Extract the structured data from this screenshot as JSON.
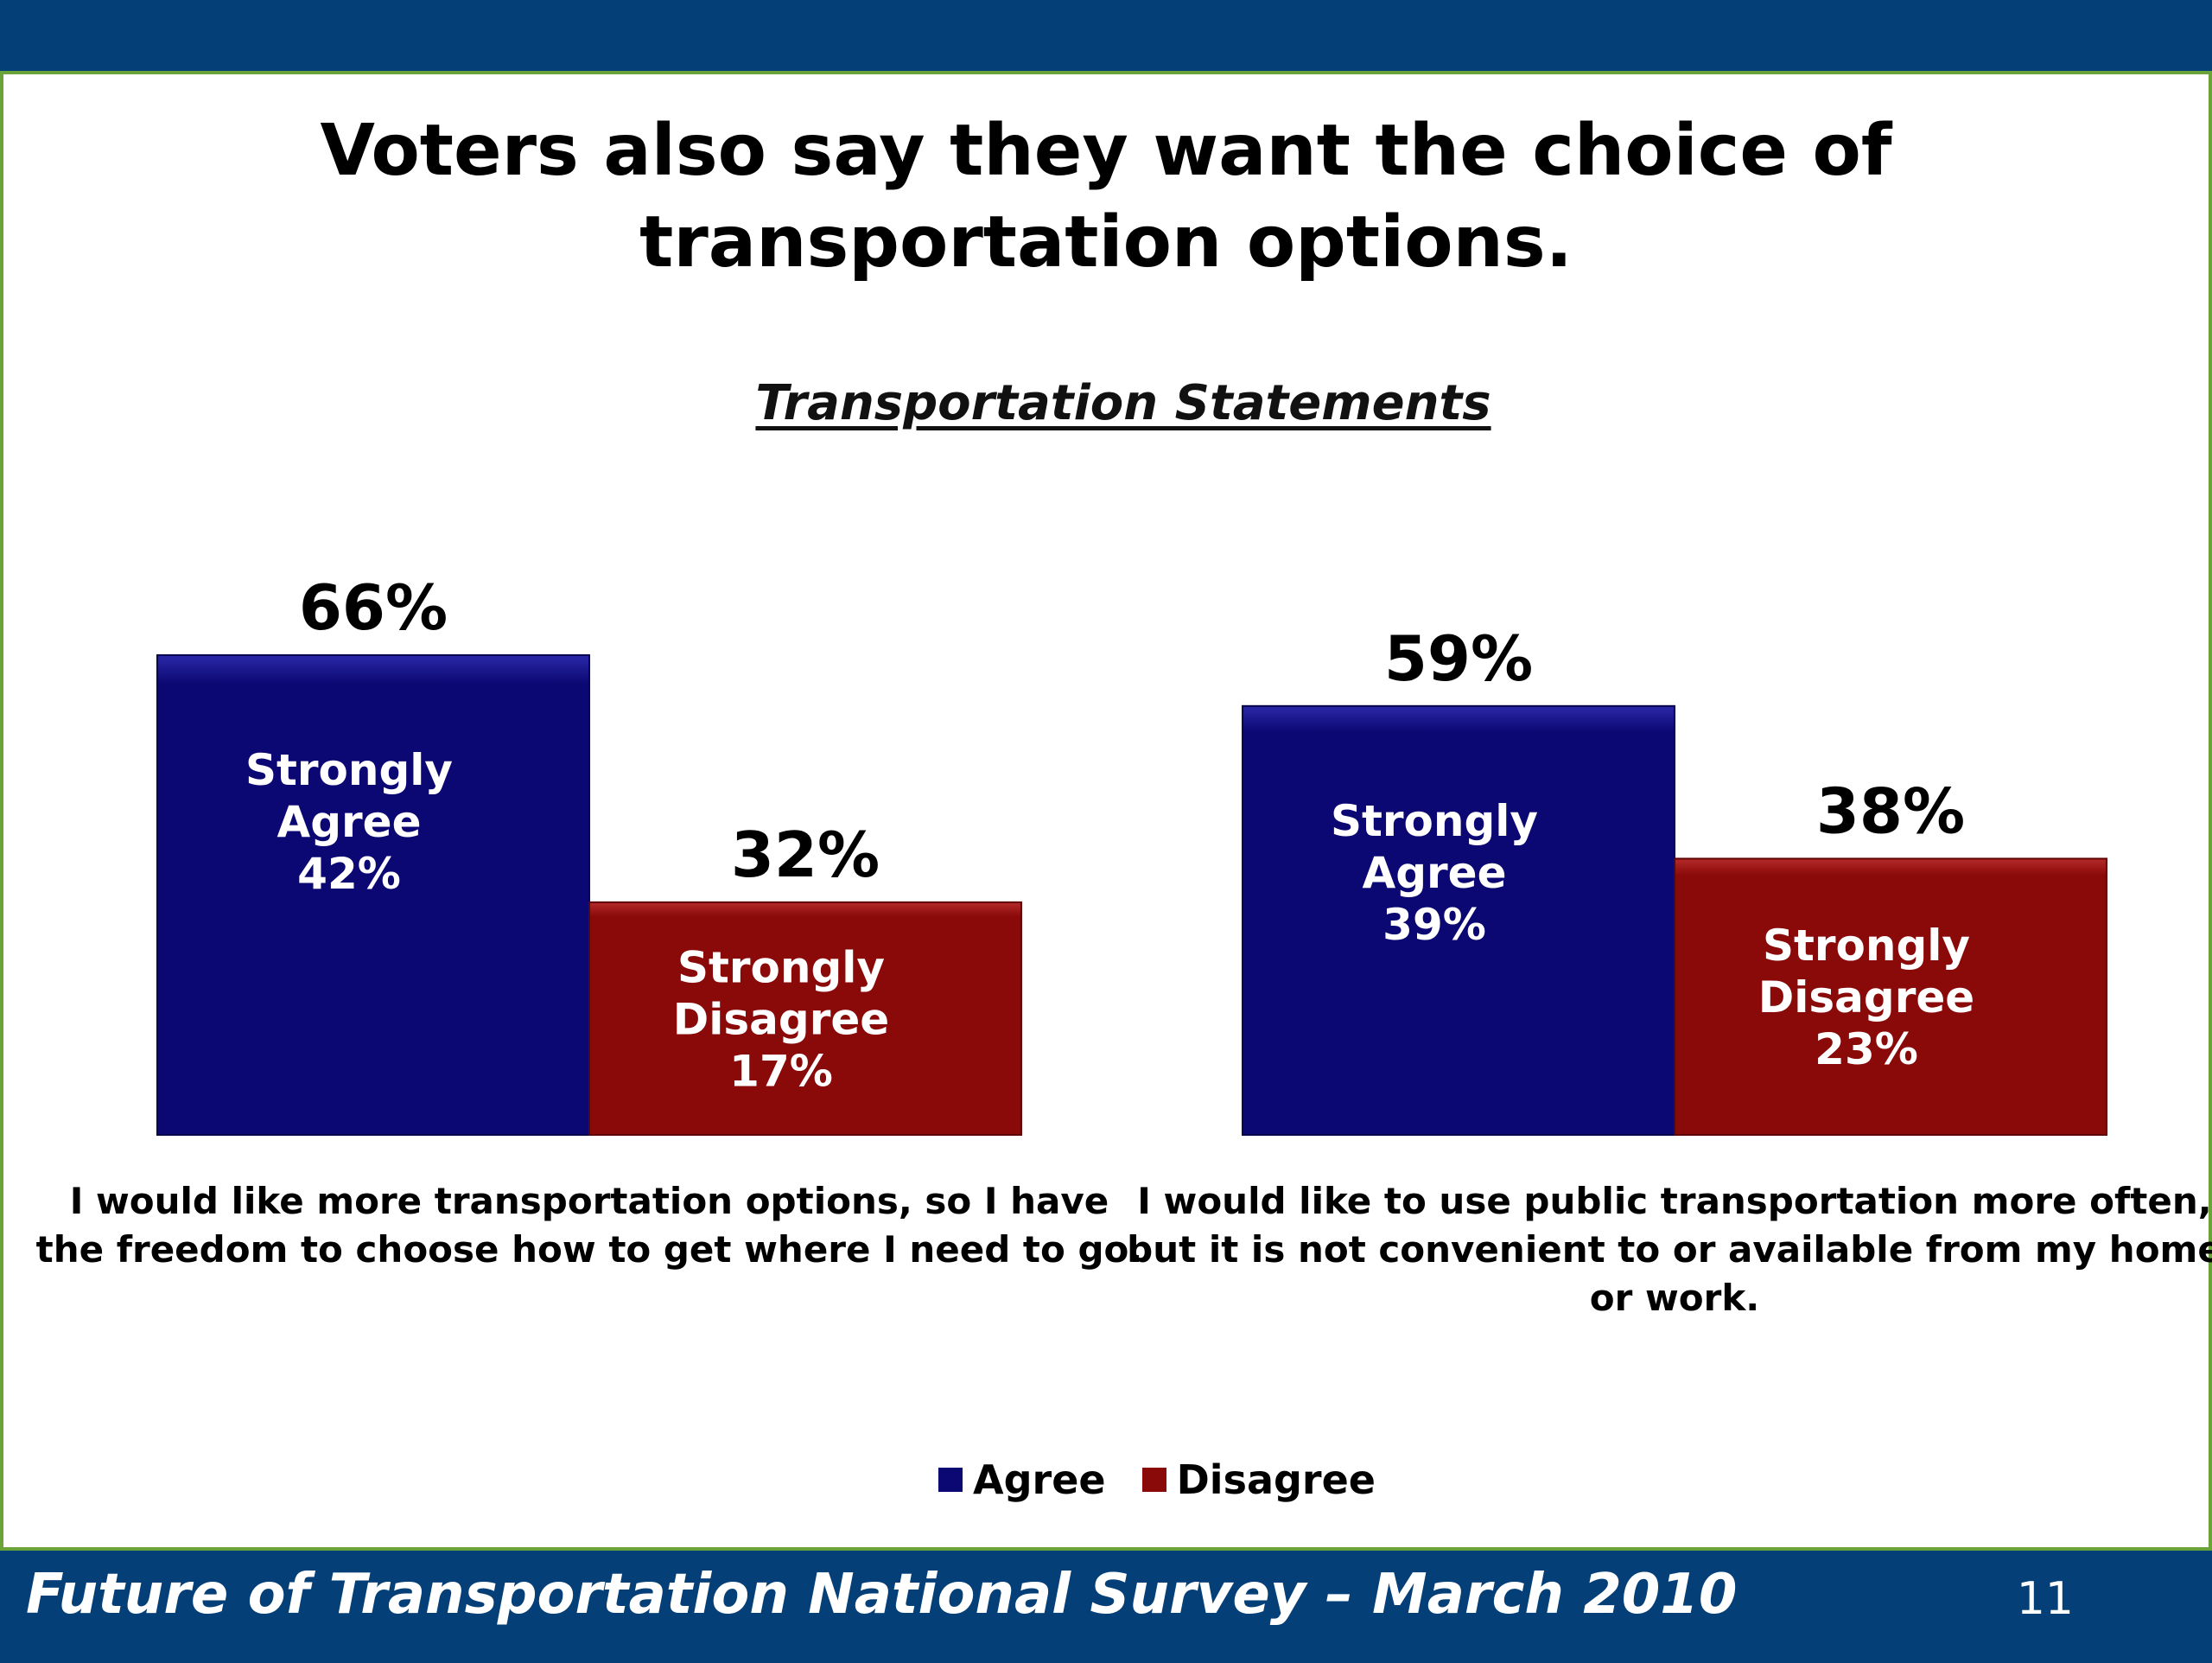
{
  "slide": {
    "title": "Voters also say they want the choice of transportation options.",
    "footer": "Future of Transportation National Survey – March 2010",
    "page_number": "11"
  },
  "colors": {
    "header_bar": "#053f77",
    "accent_green": "#6aa33a",
    "agree": "#0c0873",
    "disagree": "#8a0a0a"
  },
  "chart_data": {
    "type": "bar",
    "title": "Transportation Statements",
    "categories": [
      [
        "I would like more transportation options, so I have",
        "the freedom to choose how to get where I need to go."
      ],
      [
        "I would like to use public transportation more often,",
        "but it is not convenient to or available from my home",
        "or work."
      ]
    ],
    "series": [
      {
        "name": "Agree",
        "color": "#0c0873",
        "values": [
          66,
          59
        ],
        "labels": [
          "66%",
          "59%"
        ]
      },
      {
        "name": "Disagree",
        "color": "#8a0a0a",
        "values": [
          32,
          38
        ],
        "labels": [
          "32%",
          "38%"
        ]
      }
    ],
    "inner_labels": [
      [
        [
          "Strongly",
          "Agree",
          "42%"
        ],
        [
          "Strongly",
          "Disagree",
          "17%"
        ]
      ],
      [
        [
          "Strongly",
          "Agree",
          "39%"
        ],
        [
          "Strongly",
          "Disagree",
          "23%"
        ]
      ]
    ],
    "ylim": [
      0,
      100
    ],
    "legend": "bottom",
    "grid": false
  }
}
